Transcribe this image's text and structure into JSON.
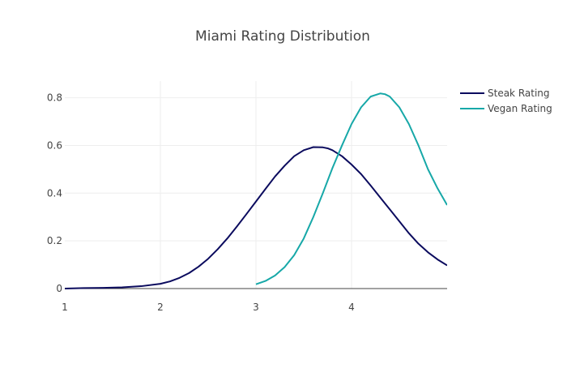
{
  "chart_data": {
    "type": "line",
    "title": "Miami Rating Distribution",
    "xlabel": "",
    "ylabel": "",
    "xlim": [
      1,
      5
    ],
    "ylim": [
      0,
      0.87
    ],
    "x_ticks": [
      1,
      2,
      3,
      4
    ],
    "y_ticks": [
      0,
      0.2,
      0.4,
      0.6,
      0.8
    ],
    "x_tick_labels": [
      "1",
      "2",
      "3",
      "4"
    ],
    "y_tick_labels": [
      "0",
      "0.2",
      "0.4",
      "0.6",
      "0.8"
    ],
    "grid": true,
    "legend_position": "top-right",
    "series": [
      {
        "name": "Steak Rating",
        "color": "#0b0b5e",
        "x": [
          1.0,
          1.2,
          1.4,
          1.6,
          1.8,
          2.0,
          2.1,
          2.2,
          2.3,
          2.4,
          2.5,
          2.6,
          2.7,
          2.8,
          2.9,
          3.0,
          3.1,
          3.2,
          3.3,
          3.4,
          3.5,
          3.6,
          3.7,
          3.75,
          3.8,
          3.9,
          4.0,
          4.1,
          4.2,
          4.3,
          4.4,
          4.5,
          4.6,
          4.7,
          4.8,
          4.9,
          5.0
        ],
        "y": [
          0.0,
          0.002,
          0.003,
          0.005,
          0.01,
          0.02,
          0.03,
          0.045,
          0.065,
          0.092,
          0.125,
          0.165,
          0.21,
          0.26,
          0.312,
          0.365,
          0.418,
          0.47,
          0.515,
          0.555,
          0.58,
          0.593,
          0.592,
          0.588,
          0.58,
          0.555,
          0.52,
          0.48,
          0.432,
          0.382,
          0.332,
          0.282,
          0.232,
          0.188,
          0.152,
          0.122,
          0.097
        ]
      },
      {
        "name": "Vegan Rating",
        "color": "#17a8a8",
        "x": [
          3.0,
          3.1,
          3.2,
          3.3,
          3.4,
          3.5,
          3.6,
          3.7,
          3.8,
          3.9,
          4.0,
          4.1,
          4.2,
          4.3,
          4.35,
          4.4,
          4.5,
          4.6,
          4.7,
          4.8,
          4.9,
          5.0
        ],
        "y": [
          0.018,
          0.032,
          0.055,
          0.09,
          0.14,
          0.21,
          0.3,
          0.4,
          0.505,
          0.6,
          0.69,
          0.76,
          0.805,
          0.818,
          0.815,
          0.805,
          0.76,
          0.69,
          0.6,
          0.5,
          0.42,
          0.35
        ]
      }
    ]
  }
}
